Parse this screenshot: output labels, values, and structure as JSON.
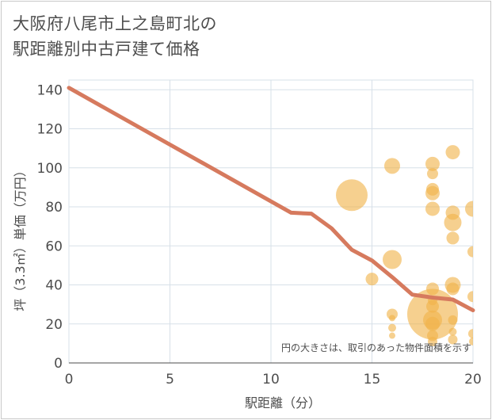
{
  "chart_data": {
    "type": "scatter",
    "title_line1": "大阪府八尾市上之島町北の",
    "title_line2": "駅距離別中古戸建て価格",
    "xlabel": "駅距離（分）",
    "ylabel": "坪（3.3㎡）単価（万円）",
    "note": "円の大きさは、取引のあった物件面積を示す",
    "xlim": [
      0,
      20
    ],
    "ylim": [
      0,
      145
    ],
    "xticks": [
      "0",
      "5",
      "10",
      "15",
      "20"
    ],
    "yticks": [
      "0",
      "20",
      "40",
      "60",
      "80",
      "100",
      "120",
      "140"
    ],
    "colors": {
      "line": "#d67a5e",
      "bubble": "#f0b34a",
      "grid": "#d7e0e8"
    },
    "line": {
      "x": [
        0,
        11,
        12,
        13,
        14,
        15,
        16,
        17,
        18,
        19,
        20
      ],
      "y": [
        141,
        77,
        76.5,
        69,
        58,
        52.5,
        44,
        35,
        33.5,
        32.5,
        27
      ]
    },
    "bubbles": [
      {
        "x": 14,
        "y": 86,
        "s": 20
      },
      {
        "x": 15,
        "y": 43,
        "s": 8
      },
      {
        "x": 16,
        "y": 101,
        "s": 10
      },
      {
        "x": 16,
        "y": 53,
        "s": 12
      },
      {
        "x": 16,
        "y": 25,
        "s": 7
      },
      {
        "x": 16,
        "y": 23,
        "s": 4
      },
      {
        "x": 16,
        "y": 18,
        "s": 5
      },
      {
        "x": 16,
        "y": 14,
        "s": 4
      },
      {
        "x": 18,
        "y": 102,
        "s": 9
      },
      {
        "x": 18,
        "y": 97,
        "s": 7
      },
      {
        "x": 18,
        "y": 89,
        "s": 8
      },
      {
        "x": 18,
        "y": 87,
        "s": 9
      },
      {
        "x": 18,
        "y": 79,
        "s": 9
      },
      {
        "x": 18,
        "y": 38,
        "s": 8
      },
      {
        "x": 18,
        "y": 32,
        "s": 6
      },
      {
        "x": 18,
        "y": 29,
        "s": 8
      },
      {
        "x": 18,
        "y": 25,
        "s": 32
      },
      {
        "x": 18,
        "y": 22,
        "s": 12
      },
      {
        "x": 18,
        "y": 20,
        "s": 9
      },
      {
        "x": 18,
        "y": 14,
        "s": 7
      },
      {
        "x": 18,
        "y": 11,
        "s": 6
      },
      {
        "x": 19,
        "y": 108,
        "s": 9
      },
      {
        "x": 19,
        "y": 77,
        "s": 9
      },
      {
        "x": 19,
        "y": 72,
        "s": 11
      },
      {
        "x": 19,
        "y": 64,
        "s": 8
      },
      {
        "x": 19,
        "y": 40,
        "s": 10
      },
      {
        "x": 19,
        "y": 38,
        "s": 8
      },
      {
        "x": 19,
        "y": 22,
        "s": 6
      },
      {
        "x": 19,
        "y": 16,
        "s": 5
      },
      {
        "x": 19,
        "y": 12,
        "s": 6
      },
      {
        "x": 20,
        "y": 79,
        "s": 10
      },
      {
        "x": 20,
        "y": 57,
        "s": 7
      },
      {
        "x": 20,
        "y": 34,
        "s": 7
      },
      {
        "x": 20,
        "y": 15,
        "s": 6
      },
      {
        "x": 20,
        "y": 11,
        "s": 5
      }
    ]
  }
}
